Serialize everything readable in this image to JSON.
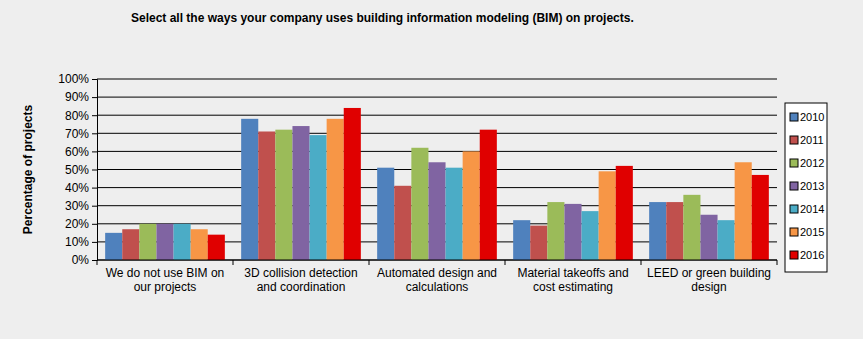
{
  "chart_data": {
    "type": "bar",
    "title": "Select all the ways your company uses building information modeling (BIM) on projects.",
    "y_label": "Percentage of projects",
    "categories": [
      "We do not use BIM on our projects",
      "3D collision detection and coordination",
      "Automated design and calculations",
      "Material takeoffs and cost estimating",
      "LEED or green building design"
    ],
    "series": [
      {
        "name": "2010",
        "color": "#4f81bd",
        "values": [
          15,
          78,
          51,
          22,
          32
        ]
      },
      {
        "name": "2011",
        "color": "#c0504d",
        "values": [
          17,
          71,
          41,
          19,
          32
        ]
      },
      {
        "name": "2012",
        "color": "#9bbb59",
        "values": [
          20,
          72,
          62,
          32,
          36
        ]
      },
      {
        "name": "2013",
        "color": "#8064a2",
        "values": [
          20,
          74,
          54,
          31,
          25
        ]
      },
      {
        "name": "2014",
        "color": "#4bacc6",
        "values": [
          20,
          69,
          51,
          27,
          22
        ]
      },
      {
        "name": "2015",
        "color": "#f79646",
        "values": [
          17,
          78,
          60,
          49,
          54
        ]
      },
      {
        "name": "2016",
        "color": "#e00000",
        "values": [
          14,
          84,
          72,
          52,
          47
        ]
      }
    ],
    "ylim": [
      0,
      100
    ],
    "yticks": [
      {
        "value": 0,
        "label": "0%"
      },
      {
        "value": 10,
        "label": "10%"
      },
      {
        "value": 20,
        "label": "20%"
      },
      {
        "value": 30,
        "label": "30%"
      },
      {
        "value": 40,
        "label": "40%"
      },
      {
        "value": 50,
        "label": "50%"
      },
      {
        "value": 60,
        "label": "60%"
      },
      {
        "value": 70,
        "label": "70%"
      },
      {
        "value": 80,
        "label": "80%"
      },
      {
        "value": 90,
        "label": "90%"
      },
      {
        "value": 100,
        "label": "100%"
      }
    ],
    "grid": true,
    "legend": "right"
  }
}
